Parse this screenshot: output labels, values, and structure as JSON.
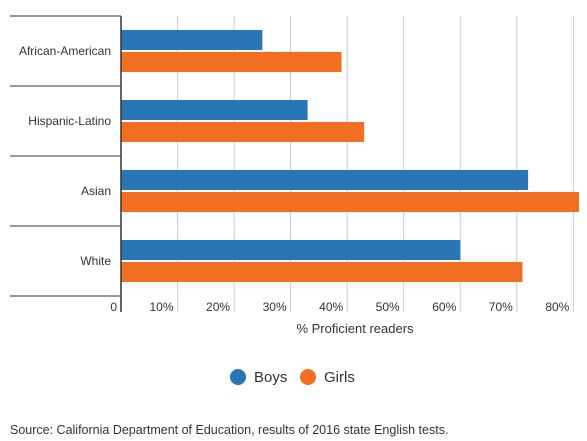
{
  "chart_data": {
    "type": "bar",
    "orientation": "horizontal",
    "categories": [
      "African-American",
      "Hispanic-Latino",
      "Asian",
      "White"
    ],
    "series": [
      {
        "name": "Boys",
        "values": [
          25,
          33,
          72,
          60
        ],
        "color": "#2a75b3"
      },
      {
        "name": "Girls",
        "values": [
          39,
          43,
          81,
          71
        ],
        "color": "#f26f21"
      }
    ],
    "xlim": [
      0,
      81
    ],
    "xticks": [
      0,
      10,
      20,
      30,
      40,
      50,
      60,
      70,
      80
    ],
    "xtick_labels": [
      "0",
      "10%",
      "20%",
      "30%",
      "40%",
      "50%",
      "60%",
      "70%",
      "80%"
    ],
    "xlabel": "% Proficient readers",
    "ylabel": "",
    "title": "",
    "grid": true,
    "legend_position": "bottom"
  },
  "source": "Source: California Department of Education, results of 2016 state English tests."
}
